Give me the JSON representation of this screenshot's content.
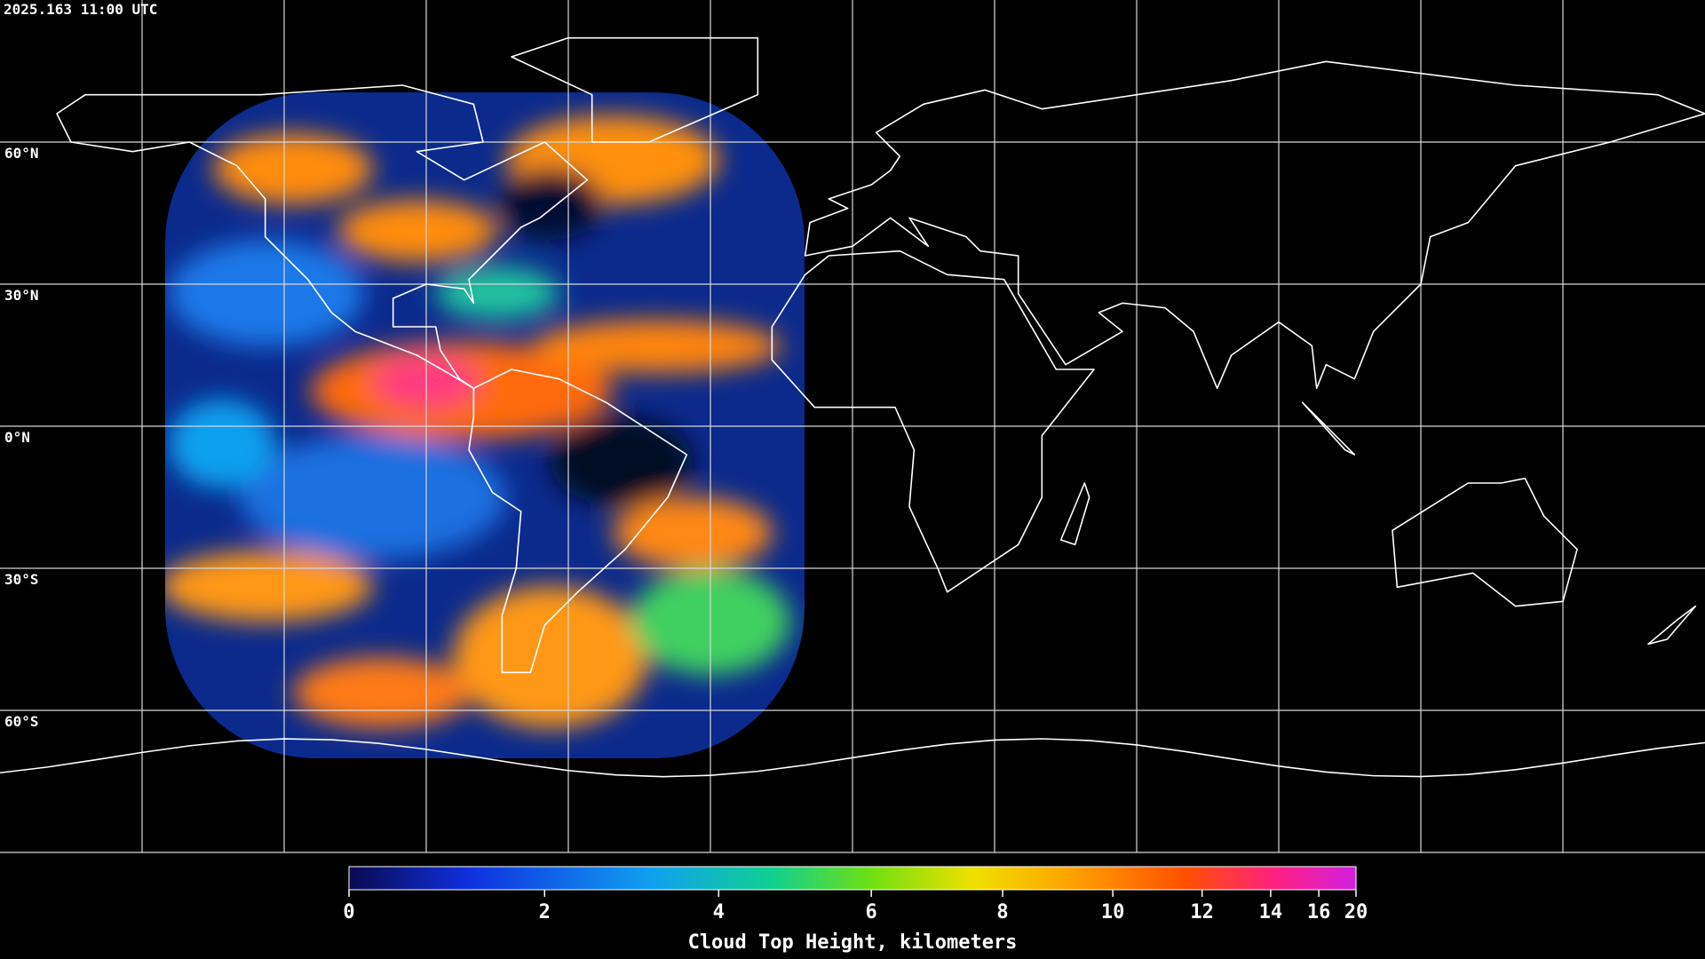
{
  "timestamp": "2025.163 11:00 UTC",
  "map": {
    "lat_labels": [
      "60°N",
      "30°N",
      "0°N",
      "30°S",
      "60°S"
    ]
  },
  "colorbar": {
    "title": "Cloud Top Height, kilometers",
    "ticks": [
      0,
      2,
      4,
      6,
      8,
      10,
      12,
      14,
      16,
      20
    ]
  }
}
